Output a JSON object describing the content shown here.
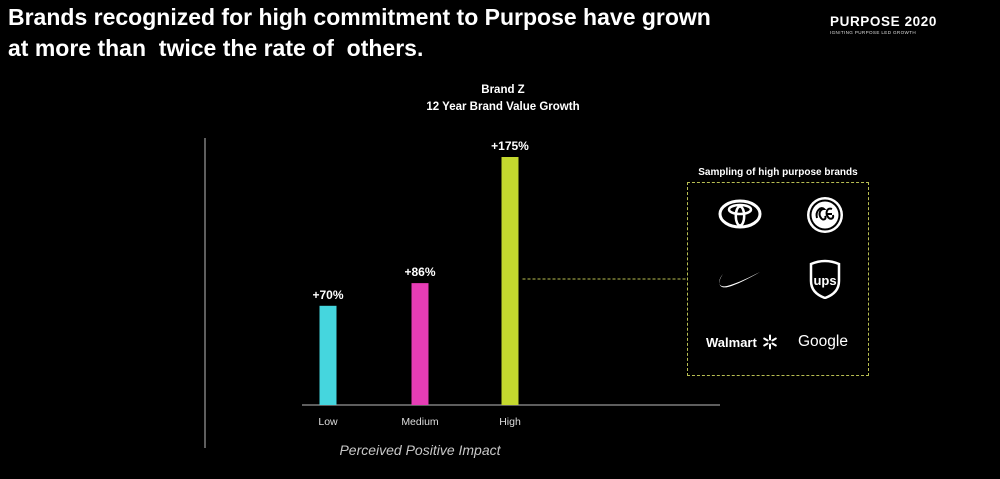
{
  "headline": {
    "line1": "Brands recognized for high commitment to Purpose have grown",
    "line2": "at more than  twice the rate of  others."
  },
  "brand": {
    "name": "PURPOSE 2020",
    "tagline": "IGNITING PURPOSE LED GROWTH"
  },
  "colors": {
    "background": "#000000",
    "low": "#45d6de",
    "medium": "#e63db5",
    "high": "#c4d92e",
    "axis": "#bbbbbb",
    "connector": "#b8be52"
  },
  "chart_data": {
    "type": "bar",
    "title": "Brand Z",
    "subtitle": "12 Year Brand Value Growth",
    "xlabel": "Perceived Positive Impact",
    "ylabel": "",
    "categories": [
      "Low",
      "Medium",
      "High"
    ],
    "values": [
      70,
      86,
      175
    ],
    "data_labels": [
      "+70%",
      "+86%",
      "+175%"
    ],
    "ylim": [
      0,
      175
    ],
    "grid": false,
    "legend": "none"
  },
  "sampling": {
    "title": "Sampling of high purpose brands",
    "logos": [
      {
        "name": "toyota-logo-icon"
      },
      {
        "name": "ge-logo-icon"
      },
      {
        "name": "nike-swoosh-icon"
      },
      {
        "name": "ups-logo-icon"
      },
      {
        "name": "walmart-logo",
        "text": "Walmart"
      },
      {
        "name": "google-logo",
        "text": "Google"
      }
    ]
  }
}
